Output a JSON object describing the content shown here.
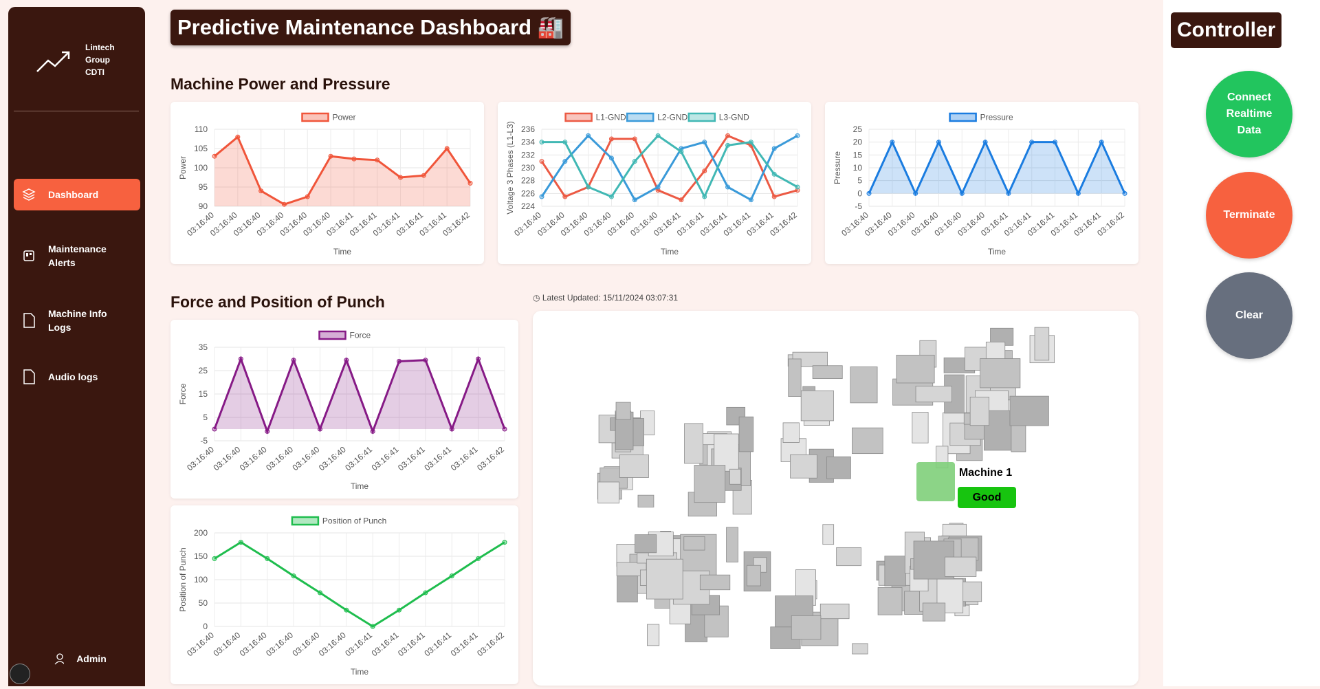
{
  "sidebar": {
    "brand": "Lintech Group CDTI",
    "nav": [
      "Dashboard",
      "Maintenance Alerts",
      "Machine Info Logs",
      "Audio logs"
    ],
    "user": "Admin"
  },
  "header": {
    "title": "Predictive Maintenance Dashboard 🏭"
  },
  "sections": [
    "Machine Power and Pressure",
    "Force and Position of Punch"
  ],
  "latest_updated": "Latest Updated: 15/11/2024 03:07:31",
  "charts": [
    {
      "type": "line",
      "fill": true,
      "ylabel": "Power",
      "xlabel": "Time",
      "ylim": [
        90,
        110
      ],
      "yticks": [
        90,
        95,
        100,
        105,
        110
      ],
      "categories": [
        "03:16:40",
        "03:16:40",
        "03:16:40",
        "03:16:40",
        "03:16:40",
        "03:16:40",
        "03:16:41",
        "03:16:41",
        "03:16:41",
        "03:16:41",
        "03:16:41",
        "03:16:42"
      ],
      "series": [
        {
          "name": "Power",
          "color": "#f0553a",
          "values": [
            103,
            108,
            94,
            90.5,
            92.5,
            103,
            102.3,
            102,
            97.5,
            98,
            105,
            96
          ]
        }
      ]
    },
    {
      "type": "line",
      "fill": false,
      "ylabel": "Voltage 3 Phases (L1-L3)",
      "xlabel": "Time",
      "ylim": [
        224,
        236
      ],
      "yticks": [
        224,
        226,
        228,
        230,
        232,
        234,
        236
      ],
      "categories": [
        "03:16:40",
        "03:16:40",
        "03:16:40",
        "03:16:40",
        "03:16:40",
        "03:16:40",
        "03:16:41",
        "03:16:41",
        "03:16:41",
        "03:16:41",
        "03:16:41",
        "03:16:42"
      ],
      "series": [
        {
          "name": "L1-GND",
          "color": "#ec5a44",
          "values": [
            231,
            225.5,
            227,
            234.5,
            234.5,
            226.5,
            225,
            229.5,
            235,
            233.5,
            225.5,
            226.5
          ]
        },
        {
          "name": "L2-GND",
          "color": "#3a9ad9",
          "values": [
            225.5,
            231,
            235,
            231.5,
            225,
            227,
            233,
            234,
            227,
            225,
            233,
            235
          ]
        },
        {
          "name": "L3-GND",
          "color": "#41b8b4",
          "values": [
            234,
            234,
            227,
            225.5,
            231,
            235,
            232.5,
            225.5,
            233.5,
            234,
            229,
            227
          ]
        }
      ]
    },
    {
      "type": "line",
      "fill": true,
      "ylabel": "Pressure",
      "xlabel": "Time",
      "ylim": [
        -5,
        25
      ],
      "yticks": [
        -5,
        0,
        5,
        10,
        15,
        20,
        25
      ],
      "categories": [
        "03:16:40",
        "03:16:40",
        "03:16:40",
        "03:16:40",
        "03:16:40",
        "03:16:40",
        "03:16:41",
        "03:16:41",
        "03:16:41",
        "03:16:41",
        "03:16:41",
        "03:16:42"
      ],
      "series": [
        {
          "name": "Pressure",
          "color": "#1a7ce0",
          "values": [
            0,
            20,
            0,
            20,
            0,
            20,
            0,
            20,
            20,
            0,
            20,
            0
          ]
        }
      ]
    },
    {
      "type": "line",
      "fill": true,
      "ylabel": "Force",
      "xlabel": "Time",
      "ylim": [
        -5,
        35
      ],
      "yticks": [
        -5,
        5,
        15,
        25,
        35
      ],
      "categories": [
        "03:16:40",
        "03:16:40",
        "03:16:40",
        "03:16:40",
        "03:16:40",
        "03:16:40",
        "03:16:41",
        "03:16:41",
        "03:16:41",
        "03:16:41",
        "03:16:41",
        "03:16:42"
      ],
      "series": [
        {
          "name": "Force",
          "color": "#861a86",
          "values": [
            0,
            30,
            -1,
            29.5,
            0,
            29.5,
            -1,
            29,
            29.5,
            0,
            30,
            0
          ]
        }
      ]
    },
    {
      "type": "line",
      "fill": false,
      "ylabel": "Position of Punch",
      "xlabel": "Time",
      "ylim": [
        0,
        200
      ],
      "yticks": [
        0,
        50,
        100,
        150,
        200
      ],
      "categories": [
        "03:16:40",
        "03:16:40",
        "03:16:40",
        "03:16:40",
        "03:16:40",
        "03:16:40",
        "03:16:41",
        "03:16:41",
        "03:16:41",
        "03:16:41",
        "03:16:41",
        "03:16:42"
      ],
      "series": [
        {
          "name": "Position of Punch",
          "color": "#1fbd4e",
          "values": [
            145,
            180,
            145,
            108,
            72,
            35,
            0,
            35,
            72,
            108,
            145,
            180
          ]
        }
      ]
    }
  ],
  "map": {
    "machine": "Machine 1",
    "status": "Good"
  },
  "controller": {
    "title": "Controller",
    "buttons": [
      "Connect Realtime Data",
      "Terminate",
      "Clear"
    ]
  }
}
